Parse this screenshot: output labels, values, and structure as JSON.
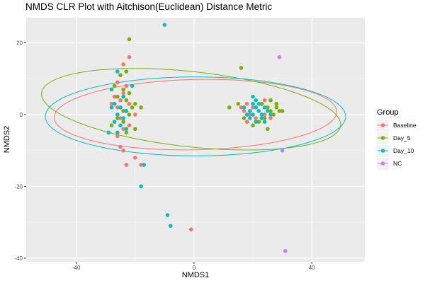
{
  "chart_data": {
    "type": "scatter",
    "title": "NMDS CLR Plot with Aitchison(Euclidean) Distance Metric",
    "xlabel": "NMDS1",
    "ylabel": "NMDS2",
    "xlim": [
      -57,
      58
    ],
    "ylim": [
      -41,
      27
    ],
    "xticks": [
      -40,
      0,
      40
    ],
    "yticks": [
      -40,
      -20,
      0,
      20
    ],
    "x_tick_labels": [
      "-40",
      "0",
      "40"
    ],
    "y_tick_labels": [
      "-40",
      "-20",
      "0",
      "20"
    ],
    "grid": true,
    "legend": {
      "title": "Group",
      "position": "right"
    },
    "series": [
      {
        "name": "Baseline",
        "color": "#F8766D",
        "points": [
          [
            -22,
            16
          ],
          [
            -24,
            14
          ],
          [
            -25,
            11
          ],
          [
            -26,
            9
          ],
          [
            -23,
            8
          ],
          [
            -24,
            6
          ],
          [
            -27,
            5
          ],
          [
            -25,
            4
          ],
          [
            -22,
            3
          ],
          [
            -28,
            3
          ],
          [
            -26,
            2
          ],
          [
            -23,
            1
          ],
          [
            -20,
            0
          ],
          [
            -25,
            -1
          ],
          [
            -27,
            -2
          ],
          [
            -22,
            -3
          ],
          [
            -24,
            -4
          ],
          [
            -26,
            -6
          ],
          [
            -25,
            -9
          ],
          [
            -24,
            -10
          ],
          [
            -20,
            -12
          ],
          [
            -23,
            -14
          ],
          [
            -18,
            -14
          ],
          [
            -1,
            -32
          ],
          [
            16,
            2
          ],
          [
            17,
            1
          ],
          [
            18,
            3
          ],
          [
            19,
            0
          ],
          [
            20,
            2
          ],
          [
            21,
            -1
          ],
          [
            22,
            1
          ],
          [
            23,
            3
          ],
          [
            24,
            0
          ],
          [
            25,
            2
          ],
          [
            26,
            -1
          ],
          [
            18,
            -2
          ],
          [
            22,
            -2
          ],
          [
            24,
            4
          ]
        ]
      },
      {
        "name": "Day_5",
        "color": "#7CAE00",
        "points": [
          [
            -22,
            21
          ],
          [
            -23,
            12
          ],
          [
            -25,
            11
          ],
          [
            -27,
            8
          ],
          [
            -24,
            7
          ],
          [
            -22,
            6
          ],
          [
            -26,
            5
          ],
          [
            -23,
            4
          ],
          [
            -20,
            3
          ],
          [
            -21,
            2
          ],
          [
            -18,
            2
          ],
          [
            -24,
            1
          ],
          [
            -22,
            0
          ],
          [
            -26,
            -1
          ],
          [
            -24,
            -2
          ],
          [
            -20,
            -4
          ],
          [
            -23,
            -5
          ],
          [
            -28,
            -3
          ],
          [
            16,
            13
          ],
          [
            15,
            3
          ],
          [
            12,
            2
          ],
          [
            17,
            -1
          ],
          [
            19,
            1
          ],
          [
            21,
            2
          ],
          [
            23,
            3
          ],
          [
            25,
            2
          ],
          [
            26,
            1
          ],
          [
            27,
            0
          ],
          [
            28,
            2
          ],
          [
            29,
            1
          ],
          [
            30,
            1
          ],
          [
            24,
            -1
          ],
          [
            22,
            -2
          ],
          [
            25,
            -4
          ],
          [
            28,
            3
          ],
          [
            26,
            4
          ],
          [
            20,
            -3
          ]
        ]
      },
      {
        "name": "Day_10",
        "color": "#00BFC4",
        "points": [
          [
            -10,
            25
          ],
          [
            -26,
            12
          ],
          [
            -28,
            7
          ],
          [
            -24,
            5
          ],
          [
            -21,
            8
          ],
          [
            -27,
            3
          ],
          [
            -25,
            2
          ],
          [
            -23,
            1
          ],
          [
            -28,
            2
          ],
          [
            -26,
            0
          ],
          [
            -24,
            -1
          ],
          [
            -27,
            -2
          ],
          [
            -25,
            -3
          ],
          [
            -23,
            -4
          ],
          [
            -26,
            -5
          ],
          [
            -29,
            -5
          ],
          [
            -17,
            -14
          ],
          [
            -18,
            -20
          ],
          [
            -9,
            -28
          ],
          [
            -8,
            -31
          ],
          [
            17,
            2
          ],
          [
            19,
            1
          ],
          [
            20,
            3
          ],
          [
            21,
            2
          ],
          [
            22,
            1
          ],
          [
            23,
            0
          ],
          [
            24,
            2
          ],
          [
            25,
            1
          ],
          [
            18,
            0
          ],
          [
            19,
            -1
          ],
          [
            21,
            -2
          ],
          [
            23,
            -1
          ],
          [
            20,
            0
          ],
          [
            22,
            3
          ],
          [
            24,
            -2
          ],
          [
            26,
            0
          ],
          [
            20,
            5
          ],
          [
            21,
            4
          ]
        ]
      },
      {
        "name": "NC",
        "color": "#C77CFF",
        "points": [
          [
            29,
            16
          ],
          [
            30,
            -10
          ],
          [
            31,
            -38
          ]
        ]
      }
    ],
    "ellipses": [
      {
        "group": "Baseline",
        "center": [
          0.5,
          0.0
        ],
        "semi_axes": [
          48,
          9.8
        ],
        "angle_deg": 1
      },
      {
        "group": "Day_5",
        "center": [
          -1.0,
          1.5
        ],
        "semi_axes": [
          51,
          10.5
        ],
        "angle_deg": -5
      },
      {
        "group": "Day_10",
        "center": [
          0.5,
          -0.5
        ],
        "semi_axes": [
          51,
          11
        ],
        "angle_deg": 0
      }
    ]
  }
}
